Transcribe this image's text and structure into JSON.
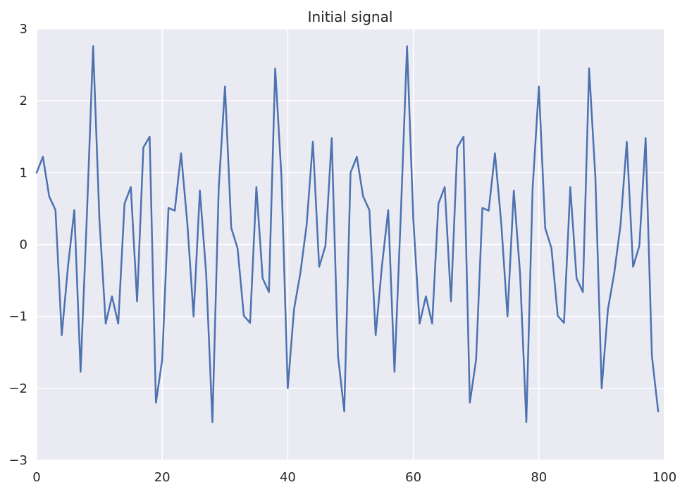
{
  "chart_data": {
    "type": "line",
    "title": "Initial signal",
    "xlabel": "",
    "ylabel": "",
    "xlim": [
      0,
      100
    ],
    "ylim": [
      -3,
      3
    ],
    "xticks": [
      0,
      20,
      40,
      60,
      80,
      100
    ],
    "yticks": [
      -3,
      -2,
      -1,
      0,
      1,
      2,
      3
    ],
    "xtick_labels": [
      "0",
      "20",
      "40",
      "60",
      "80",
      "100"
    ],
    "ytick_labels": [
      "−3",
      "−2",
      "−1",
      "0",
      "1",
      "2",
      "3"
    ],
    "grid": true,
    "legend": "none",
    "series": [
      {
        "x": [
          0,
          1,
          2,
          3,
          4,
          5,
          6,
          7,
          8,
          9,
          10,
          11,
          12,
          13,
          14,
          15,
          16,
          17,
          18,
          19,
          20,
          21,
          22,
          23,
          24,
          25,
          26,
          27,
          28,
          29,
          30,
          31,
          32,
          33,
          34,
          35,
          36,
          37,
          38,
          39,
          40,
          41,
          42,
          43,
          44,
          45,
          46,
          47,
          48,
          49,
          50,
          51,
          52,
          53,
          54,
          55,
          56,
          57,
          58,
          59,
          60,
          61,
          62,
          63,
          64,
          65,
          66,
          67,
          68,
          69,
          70,
          71,
          72,
          73,
          74,
          75,
          76,
          77,
          78,
          79,
          80,
          81,
          82,
          83,
          84,
          85,
          86,
          87,
          88,
          89,
          90,
          91,
          92,
          93,
          94,
          95,
          96,
          97,
          98,
          99
        ],
        "values": [
          1.0,
          1.22,
          0.67,
          0.48,
          -1.26,
          -0.3,
          0.48,
          -1.77,
          0.4,
          2.76,
          0.35,
          -1.1,
          -0.72,
          -1.1,
          0.57,
          0.8,
          -0.79,
          1.35,
          1.5,
          -2.2,
          -1.6,
          0.51,
          0.47,
          1.27,
          0.3,
          -1.0,
          0.75,
          -0.4,
          -2.47,
          0.78,
          2.2,
          0.23,
          -0.05,
          -0.99,
          -1.09,
          0.8,
          -0.47,
          -0.66,
          2.45,
          0.93,
          -2.0,
          -0.9,
          -0.4,
          0.27,
          1.43,
          -0.31,
          -0.02,
          1.48,
          -1.55,
          -2.32,
          1.0,
          1.22,
          0.67,
          0.48,
          -1.26,
          -0.3,
          0.48,
          -1.77,
          0.4,
          2.76,
          0.35,
          -1.1,
          -0.72,
          -1.1,
          0.57,
          0.8,
          -0.79,
          1.35,
          1.5,
          -2.2,
          -1.6,
          0.51,
          0.47,
          1.27,
          0.3,
          -1.0,
          0.75,
          -0.4,
          -2.47,
          0.78,
          2.2,
          0.23,
          -0.05,
          -0.99,
          -1.09,
          0.8,
          -0.47,
          -0.66,
          2.45,
          0.93,
          -2.0,
          -0.9,
          -0.4,
          0.27,
          1.43,
          -0.31,
          -0.02,
          1.48,
          -1.55,
          -2.32
        ]
      }
    ]
  },
  "colors": {
    "plot_background": "#eaeaf2",
    "grid": "#ffffff",
    "series_line": "#4c72b0",
    "text": "#262626"
  }
}
